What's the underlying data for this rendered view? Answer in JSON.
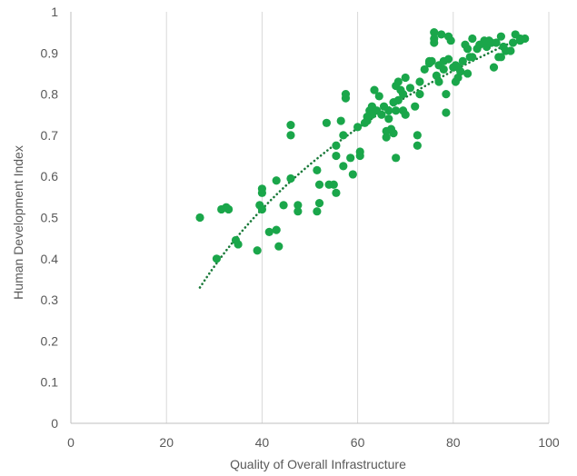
{
  "chart_data": {
    "type": "scatter",
    "xlabel": "Quality of Overall Infrastructure",
    "ylabel": "Human Development Index",
    "xlim": [
      0,
      100
    ],
    "ylim": [
      0,
      1
    ],
    "x_ticks": [
      "0",
      "20",
      "40",
      "60",
      "80",
      "100"
    ],
    "y_ticks": [
      "0",
      "0.1",
      "0.2",
      "0.3",
      "0.4",
      "0.5",
      "0.6",
      "0.7",
      "0.8",
      "0.9",
      "1"
    ],
    "grid": "vertical",
    "legend": "none",
    "colors": {
      "points": "#1aa64a",
      "trendline": "#1a7a3a"
    },
    "trendline": {
      "style": "dotted",
      "type": "log",
      "x_range": [
        27,
        95
      ],
      "y_range": [
        0.33,
        0.94
      ]
    },
    "points": [
      [
        27,
        0.5
      ],
      [
        30.5,
        0.4
      ],
      [
        31.5,
        0.52
      ],
      [
        32.5,
        0.525
      ],
      [
        33,
        0.52
      ],
      [
        34.5,
        0.445
      ],
      [
        35,
        0.435
      ],
      [
        39,
        0.42
      ],
      [
        39.5,
        0.53
      ],
      [
        40,
        0.56
      ],
      [
        40,
        0.57
      ],
      [
        40,
        0.52
      ],
      [
        41.5,
        0.465
      ],
      [
        43,
        0.47
      ],
      [
        43.5,
        0.43
      ],
      [
        43,
        0.59
      ],
      [
        44.5,
        0.53
      ],
      [
        46,
        0.595
      ],
      [
        46,
        0.7
      ],
      [
        46,
        0.725
      ],
      [
        47.5,
        0.53
      ],
      [
        47.5,
        0.515
      ],
      [
        51.5,
        0.615
      ],
      [
        51.5,
        0.515
      ],
      [
        52,
        0.535
      ],
      [
        52,
        0.58
      ],
      [
        53.5,
        0.73
      ],
      [
        54,
        0.58
      ],
      [
        55,
        0.58
      ],
      [
        55.5,
        0.56
      ],
      [
        55.5,
        0.65
      ],
      [
        55.5,
        0.675
      ],
      [
        56.5,
        0.735
      ],
      [
        57,
        0.7
      ],
      [
        57,
        0.625
      ],
      [
        57.5,
        0.79
      ],
      [
        57.5,
        0.8
      ],
      [
        58.5,
        0.645
      ],
      [
        59,
        0.605
      ],
      [
        60,
        0.72
      ],
      [
        60.5,
        0.65
      ],
      [
        60.5,
        0.66
      ],
      [
        61.5,
        0.73
      ],
      [
        62,
        0.735
      ],
      [
        62.5,
        0.76
      ],
      [
        63,
        0.75
      ],
      [
        63,
        0.77
      ],
      [
        63.5,
        0.81
      ],
      [
        64,
        0.76
      ],
      [
        64.5,
        0.795
      ],
      [
        65,
        0.75
      ],
      [
        65.5,
        0.77
      ],
      [
        66,
        0.695
      ],
      [
        66,
        0.71
      ],
      [
        66.5,
        0.76
      ],
      [
        67,
        0.715
      ],
      [
        67.5,
        0.78
      ],
      [
        67.5,
        0.705
      ],
      [
        68,
        0.645
      ],
      [
        68,
        0.76
      ],
      [
        68.5,
        0.785
      ],
      [
        68,
        0.82
      ],
      [
        68.5,
        0.83
      ],
      [
        69,
        0.81
      ],
      [
        69.5,
        0.8
      ],
      [
        69.5,
        0.76
      ],
      [
        70,
        0.75
      ],
      [
        70,
        0.84
      ],
      [
        71,
        0.815
      ],
      [
        72,
        0.77
      ],
      [
        72.5,
        0.675
      ],
      [
        72.5,
        0.7
      ],
      [
        73,
        0.8
      ],
      [
        73,
        0.83
      ],
      [
        74,
        0.86
      ],
      [
        75,
        0.875
      ],
      [
        75,
        0.88
      ],
      [
        75.5,
        0.88
      ],
      [
        76,
        0.925
      ],
      [
        76,
        0.935
      ],
      [
        76.5,
        0.845
      ],
      [
        77,
        0.83
      ],
      [
        77,
        0.87
      ],
      [
        77.5,
        0.945
      ],
      [
        78,
        0.88
      ],
      [
        78,
        0.86
      ],
      [
        78.5,
        0.8
      ],
      [
        78.5,
        0.755
      ],
      [
        79,
        0.885
      ],
      [
        79.5,
        0.93
      ],
      [
        80,
        0.865
      ],
      [
        80.5,
        0.87
      ],
      [
        80.5,
        0.83
      ],
      [
        81,
        0.84
      ],
      [
        81,
        0.865
      ],
      [
        81.5,
        0.855
      ],
      [
        82,
        0.88
      ],
      [
        82.5,
        0.92
      ],
      [
        83,
        0.91
      ],
      [
        83,
        0.85
      ],
      [
        83.5,
        0.89
      ],
      [
        84,
        0.89
      ],
      [
        84,
        0.935
      ],
      [
        85,
        0.91
      ],
      [
        86.5,
        0.93
      ],
      [
        87,
        0.915
      ],
      [
        88,
        0.925
      ],
      [
        88.5,
        0.865
      ],
      [
        89,
        0.925
      ],
      [
        89.5,
        0.89
      ],
      [
        90,
        0.89
      ],
      [
        90,
        0.94
      ],
      [
        90.5,
        0.915
      ],
      [
        91,
        0.905
      ],
      [
        92,
        0.905
      ],
      [
        92.5,
        0.925
      ],
      [
        93,
        0.945
      ],
      [
        94,
        0.935
      ],
      [
        94,
        0.93
      ],
      [
        95,
        0.935
      ],
      [
        76,
        0.95
      ],
      [
        79,
        0.94
      ],
      [
        85.5,
        0.92
      ],
      [
        87.5,
        0.93
      ],
      [
        66.5,
        0.74
      ],
      [
        62,
        0.745
      ]
    ]
  }
}
